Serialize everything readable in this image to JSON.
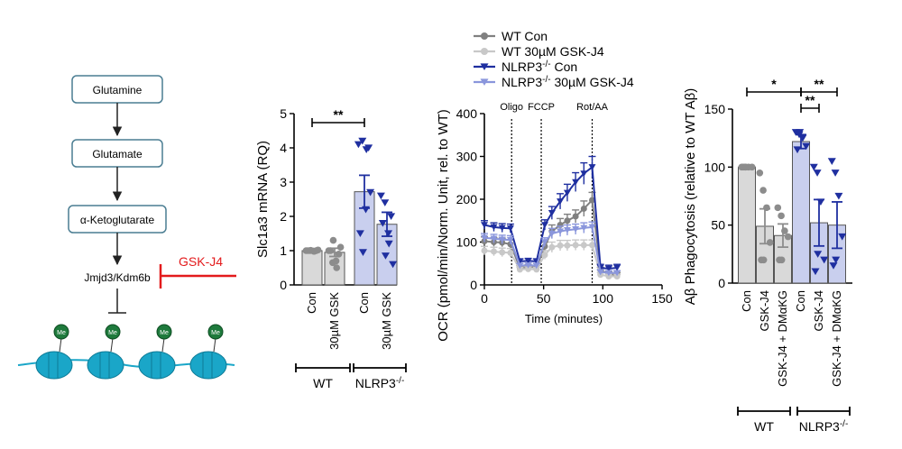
{
  "pathway": {
    "boxes": [
      "Glutamine",
      "Glutamate",
      "α-Ketoglutarate"
    ],
    "enzyme": "Jmjd3/Kdm6b",
    "inhibitor": "GSK-J4",
    "mark_label": "Me",
    "colors": {
      "inhibitor": "#e31a1c",
      "box_border": "#4a7d92",
      "nucleosome": "#1aa6c8",
      "me_mark": "#1e7a3c"
    }
  },
  "chart_data": [
    {
      "type": "bar",
      "ylabel": "Slc1a3 mRNA (RQ)",
      "ylim": [
        0,
        5
      ],
      "yticks": [
        "0",
        "1",
        "2",
        "3",
        "4",
        "5"
      ],
      "categories": [
        "Con",
        "30µM GSK",
        "Con",
        "30µM GSK"
      ],
      "groups": [
        {
          "label": "WT"
        },
        {
          "label": "NLRP3",
          "sup": "-/-"
        }
      ],
      "values": [
        1.0,
        0.95,
        2.72,
        1.77
      ],
      "errors": [
        0.02,
        0.12,
        0.48,
        0.35
      ],
      "points": [
        [
          1.0,
          1.0,
          0.98,
          1.02,
          1.0,
          1.01,
          0.99,
          1.0
        ],
        [
          1.0,
          0.65,
          0.5,
          1.1,
          1.0,
          1.3,
          0.7,
          0.9
        ],
        [
          4.1,
          4.2,
          3.95,
          2.7,
          1.5,
          0.95,
          2.2,
          4.0
        ],
        [
          2.6,
          2.4,
          1.2,
          0.6,
          1.8,
          0.85,
          1.5,
          2.0
        ]
      ],
      "significance": [
        {
          "between": [
            0,
            2
          ],
          "label": "**"
        }
      ],
      "colors": [
        "#d9d9d9",
        "#d9d9d9",
        "#c9cfee",
        "#c9cfee"
      ],
      "point_colors": [
        "#8c8c8c",
        "#8c8c8c",
        "#1f2fa0",
        "#1f2fa0"
      ]
    },
    {
      "type": "line",
      "xlabel": "Time (minutes)",
      "ylabel": "OCR (pmol/min/Norm. Unit, rel. to WT)",
      "xlim": [
        0,
        150
      ],
      "ylim": [
        0,
        400
      ],
      "xticks": [
        "0",
        "50",
        "100",
        "150"
      ],
      "yticks": [
        "0",
        "100",
        "200",
        "300",
        "400"
      ],
      "injections": [
        {
          "x": 23,
          "label": "Oligo"
        },
        {
          "x": 48,
          "label": "FCCP"
        },
        {
          "x": 91,
          "label": "Rot/AA"
        }
      ],
      "x": [
        0,
        8,
        15,
        22,
        30,
        37,
        44,
        51,
        57,
        64,
        70,
        77,
        84,
        91,
        98,
        105,
        112
      ],
      "series": [
        {
          "name": "WT Con",
          "marker": "circle",
          "color": "#808080",
          "values": [
            102,
            100,
            99,
            95,
            40,
            42,
            41,
            90,
            125,
            140,
            150,
            160,
            178,
            198,
            35,
            25,
            24
          ],
          "errors": [
            10,
            10,
            10,
            10,
            5,
            5,
            5,
            10,
            15,
            15,
            15,
            15,
            18,
            18,
            6,
            5,
            5
          ]
        },
        {
          "name": "WT 30µM GSK-J4",
          "marker": "circle",
          "color": "#c8c8c8",
          "values": [
            80,
            78,
            76,
            75,
            36,
            37,
            36,
            70,
            88,
            92,
            92,
            93,
            93,
            93,
            24,
            20,
            20
          ],
          "errors": [
            10,
            10,
            10,
            10,
            5,
            5,
            5,
            10,
            12,
            12,
            12,
            12,
            12,
            12,
            5,
            5,
            5
          ]
        },
        {
          "name": "NLRP3",
          "name_sup": "-/-",
          "name_suffix": " Con",
          "marker": "triangle",
          "color": "#1f2fa0",
          "values": [
            140,
            135,
            133,
            132,
            55,
            56,
            55,
            140,
            168,
            195,
            215,
            240,
            260,
            275,
            40,
            38,
            40
          ],
          "errors": [
            10,
            10,
            10,
            10,
            6,
            6,
            6,
            12,
            15,
            18,
            20,
            22,
            25,
            25,
            8,
            8,
            8
          ]
        },
        {
          "name": "NLRP3",
          "name_sup": "-/-",
          "name_suffix": " 30µM GSK-J4",
          "marker": "triangle",
          "color": "#8a96dc",
          "values": [
            110,
            108,
            106,
            105,
            45,
            46,
            45,
            100,
            120,
            125,
            128,
            130,
            133,
            135,
            30,
            28,
            28
          ],
          "errors": [
            10,
            10,
            10,
            10,
            5,
            5,
            5,
            10,
            12,
            12,
            12,
            12,
            12,
            12,
            5,
            5,
            5
          ]
        }
      ]
    },
    {
      "type": "bar",
      "ylabel": "Aβ Phagocytosis (relative to WT Aβ)",
      "ylim": [
        0,
        150
      ],
      "yticks": [
        "0",
        "50",
        "100",
        "150"
      ],
      "categories": [
        "Con",
        "GSK-J4",
        "GSK-J4 + DMαKG",
        "Con",
        "GSK-J4",
        "GSK-J4 + DMαKG"
      ],
      "groups": [
        {
          "label": "WT"
        },
        {
          "label": "NLRP3",
          "sup": "-/-"
        }
      ],
      "values": [
        100,
        49,
        41,
        122,
        52,
        50
      ],
      "errors": [
        0.5,
        15,
        10,
        6,
        20,
        20
      ],
      "points": [
        [
          100,
          100,
          100,
          100,
          100,
          100
        ],
        [
          95,
          80,
          65,
          35,
          20,
          20
        ],
        [
          65,
          58,
          45,
          40,
          20,
          20
        ],
        [
          130,
          128,
          125,
          118,
          115,
          130
        ],
        [
          100,
          95,
          70,
          20,
          10,
          25
        ],
        [
          105,
          95,
          75,
          40,
          15,
          20
        ]
      ],
      "significance": [
        {
          "between": [
            0,
            3
          ],
          "label": "*"
        },
        {
          "between": [
            3,
            4
          ],
          "label": "**"
        },
        {
          "between": [
            3,
            5
          ],
          "label": "**"
        }
      ],
      "colors": [
        "#d9d9d9",
        "#d9d9d9",
        "#d9d9d9",
        "#c9cfee",
        "#c9cfee",
        "#c9cfee"
      ],
      "point_colors": [
        "#8c8c8c",
        "#8c8c8c",
        "#8c8c8c",
        "#1f2fa0",
        "#1f2fa0",
        "#1f2fa0"
      ]
    }
  ]
}
